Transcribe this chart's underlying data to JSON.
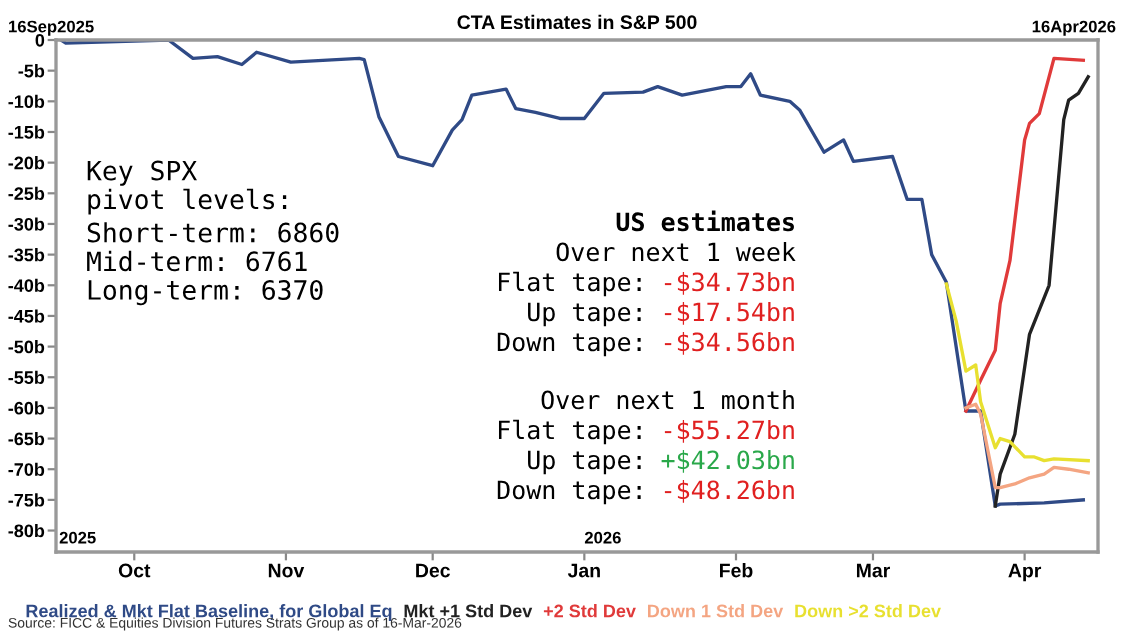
{
  "chart_data": {
    "type": "line",
    "title": "CTA Estimates in S&P 500",
    "xlim": [
      "2025-09-15",
      "2026-04-16"
    ],
    "xticks": [
      {
        "value": "2025-10-01",
        "label": "Oct"
      },
      {
        "value": "2025-11-01",
        "label": "Nov"
      },
      {
        "value": "2025-12-01",
        "label": "Dec"
      },
      {
        "value": "2026-01-01",
        "label": "Jan"
      },
      {
        "value": "2026-02-01",
        "label": "Feb"
      },
      {
        "value": "2026-03-01",
        "label": "Mar"
      },
      {
        "value": "2026-04-01",
        "label": "Apr"
      }
    ],
    "ylim": [
      -83.5,
      0
    ],
    "yticks": [
      0,
      {
        "value": -5,
        "label": "-5b"
      },
      {
        "value": -10,
        "label": "-10b"
      },
      {
        "value": -15,
        "label": "-15b"
      },
      {
        "value": -20,
        "label": "-20b"
      },
      {
        "value": -25,
        "label": "-25b"
      },
      {
        "value": -30,
        "label": "-30b"
      },
      {
        "value": -35,
        "label": "-35b"
      },
      {
        "value": -40,
        "label": "-40b"
      },
      {
        "value": -45,
        "label": "-45b"
      },
      {
        "value": -50,
        "label": "-50b"
      },
      {
        "value": -55,
        "label": "-55b"
      },
      {
        "value": -60,
        "label": "-60b"
      },
      {
        "value": -65,
        "label": "-65b"
      },
      {
        "value": -70,
        "label": "-70b"
      },
      {
        "value": -75,
        "label": "-75b"
      },
      {
        "value": -80,
        "label": "-80b"
      }
    ],
    "grid": false,
    "legend": "bottom",
    "marker": "none",
    "line_style": "solid",
    "series": [
      {
        "name": "Realized & Mkt Flat Baseline, for Global Eq",
        "color": "#2f4a86",
        "x": [
          "2025-09-16",
          "2025-09-17",
          "2025-10-08",
          "2025-10-13",
          "2025-10-18",
          "2025-10-23",
          "2025-10-26",
          "2025-11-02",
          "2025-11-16",
          "2025-11-17",
          "2025-11-20",
          "2025-11-24",
          "2025-12-01",
          "2025-12-05",
          "2025-12-07",
          "2025-12-09",
          "2025-12-16",
          "2025-12-18",
          "2025-12-22",
          "2025-12-27",
          "2026-01-01",
          "2026-01-05",
          "2026-01-13",
          "2026-01-16",
          "2026-01-21",
          "2026-01-30",
          "2026-02-02",
          "2026-02-04",
          "2026-02-06",
          "2026-02-12",
          "2026-02-14",
          "2026-02-19",
          "2026-02-23",
          "2026-02-25",
          "2026-03-05",
          "2026-03-08",
          "2026-03-11",
          "2026-03-13",
          "2026-03-16",
          "2026-03-20",
          "2026-03-23",
          "2026-03-26",
          "2026-03-27",
          "2026-04-05",
          "2026-04-13"
        ],
        "values": [
          0,
          -0.5,
          0,
          -3,
          -2.7,
          -4,
          -2,
          -3.6,
          -3,
          -3.2,
          -12.5,
          -19,
          -20.5,
          -14.7,
          -13,
          -9,
          -8,
          -11.2,
          -11.8,
          -12.8,
          -12.8,
          -8.7,
          -8.5,
          -7.6,
          -9,
          -7.6,
          -7.6,
          -5.5,
          -9,
          -10,
          -11.4,
          -18.3,
          -16.3,
          -19.8,
          -19,
          -26,
          -26,
          -35,
          -39.5,
          -60.5,
          -60.5,
          -76,
          -75.7,
          -75.5,
          -75
        ]
      },
      {
        "name": "Mkt +1 Std Dev",
        "color": "#222222",
        "x": [
          "2026-03-26",
          "2026-03-27",
          "2026-03-30",
          "2026-04-02",
          "2026-04-06",
          "2026-04-09",
          "2026-04-10",
          "2026-04-12",
          "2026-04-14"
        ],
        "values": [
          -76,
          -70.8,
          -64.3,
          -48,
          -40,
          -13,
          -9.8,
          -8.7,
          -6
        ]
      },
      {
        "name": "+2 Std Dev",
        "color": "#e03a3a",
        "x": [
          "2026-03-20",
          "2026-03-23",
          "2026-03-26",
          "2026-03-27",
          "2026-03-29",
          "2026-04-01",
          "2026-04-02",
          "2026-04-04",
          "2026-04-07",
          "2026-04-13"
        ],
        "values": [
          -60.5,
          -55.5,
          -50.6,
          -43,
          -36,
          -16.3,
          -13.6,
          -12,
          -3,
          -3.3
        ]
      },
      {
        "name": "Down 1 Std Dev",
        "color": "#f4a582",
        "x": [
          "2026-03-20",
          "2026-03-22",
          "2026-03-23",
          "2026-03-26",
          "2026-03-27",
          "2026-03-30",
          "2026-04-02",
          "2026-04-05",
          "2026-04-07",
          "2026-04-10",
          "2026-04-14"
        ],
        "values": [
          -60,
          -59.4,
          -61,
          -73,
          -73,
          -72.4,
          -71.4,
          -70.8,
          -69.7,
          -70,
          -70.6
        ]
      },
      {
        "name": "Down >2 Std Dev",
        "color": "#e8e030",
        "x": [
          "2026-03-16",
          "2026-03-18",
          "2026-03-20",
          "2026-03-22",
          "2026-03-23",
          "2026-03-26",
          "2026-03-27",
          "2026-03-29",
          "2026-04-01",
          "2026-04-03",
          "2026-04-05",
          "2026-04-07",
          "2026-04-14"
        ],
        "values": [
          -39.8,
          -45.8,
          -54,
          -53,
          -59,
          -66.5,
          -65,
          -65.5,
          -68,
          -68,
          -68.6,
          -68.3,
          -68.6
        ]
      }
    ],
    "annotations": [
      "16Sep2025",
      "16Apr2026",
      "2025",
      "2026",
      "Key SPX\npivot levels:",
      "Short-term: 6860\nMid-term: 6761\nLong-term: 6370",
      "US estimates",
      "Over next 1 week",
      "Flat tape:",
      "-$34.73bn",
      "Up tape:",
      "-$17.54bn",
      "Down tape:",
      "-$34.56bn",
      "Over next 1 month",
      "Flat tape:",
      "-$55.27bn",
      "Up tape:",
      "+$42.03bn",
      "Down tape:",
      "-$48.26bn",
      "Source: FICC & Equities Division Futures Strats Group as of 16-Mar-2026"
    ]
  }
}
